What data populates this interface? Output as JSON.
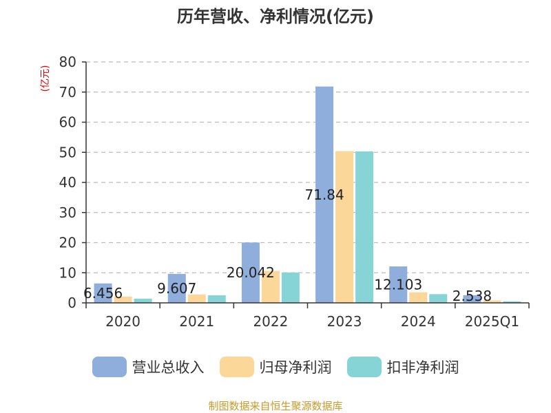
{
  "colors": {
    "revenue": "#8faedc",
    "parent_profit": "#fbd89a",
    "deducted_profit": "#86d4d6",
    "axis": "#333333",
    "grid": "#bbbbbb",
    "unit": "#e00000",
    "source": "#c79a2a"
  },
  "chart_data": {
    "type": "bar",
    "title": "历年营收、净利情况(亿元)",
    "ylabel": "(亿元)",
    "xlabel": "",
    "ylim": [
      0,
      80
    ],
    "yticks": [
      "0",
      "10",
      "20",
      "30",
      "40",
      "50",
      "60",
      "70",
      "80"
    ],
    "grid": true,
    "legend_position": "bottom",
    "categories": [
      "2020",
      "2021",
      "2022",
      "2023",
      "2024",
      "2025Q1"
    ],
    "series": [
      {
        "name": "营业总收入",
        "color_key": "revenue",
        "values": [
          6.456,
          9.607,
          20.042,
          71.84,
          12.103,
          2.538
        ]
      },
      {
        "name": "归母净利润",
        "color_key": "parent_profit",
        "values": [
          2.1,
          2.8,
          10.6,
          50.4,
          3.5,
          0.8
        ]
      },
      {
        "name": "扣非净利润",
        "color_key": "deducted_profit",
        "values": [
          1.4,
          2.5,
          10.1,
          50.3,
          2.9,
          0.5
        ]
      }
    ],
    "data_labels": [
      "6.456",
      "9.607",
      "20.042",
      "71.84",
      "12.103",
      "2.538"
    ]
  },
  "footer": {
    "source": "制图数据来自恒生聚源数据库"
  }
}
